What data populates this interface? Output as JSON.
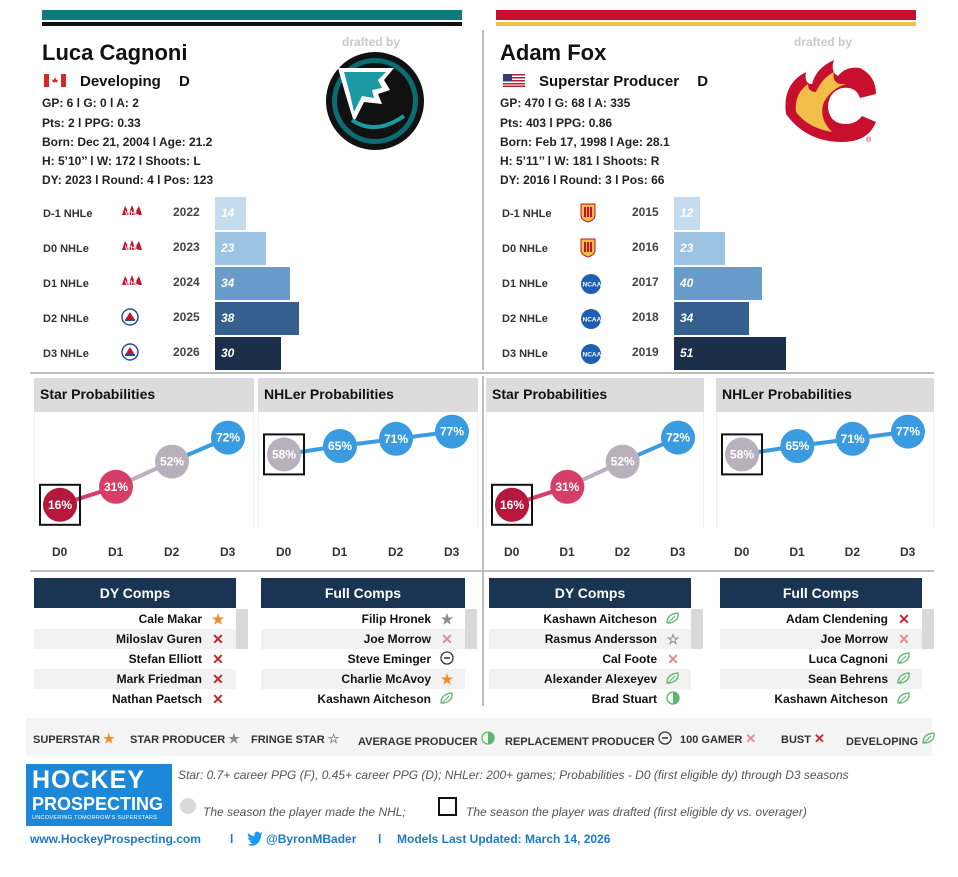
{
  "left": {
    "name": "Luca Cagnoni",
    "status": "Developing",
    "position": "D",
    "line1": "GP: 6 l G: 0 l A: 2",
    "line2": "Pts: 2 l PPG: 0.33",
    "line3": "Born: Dec 21, 2004 l Age: 21.2",
    "line4": "H: 5’10’’ l W: 172 l Shoots: L",
    "line5": "DY: 2023 l Round: 4 l Pos: 123",
    "drafted_by": "drafted by",
    "team_colors": [
      "#006272",
      "#111111"
    ],
    "seasons": [
      {
        "label": "D-1 NHLe",
        "year": "2022",
        "value": 14,
        "league_icon": "whl-logo"
      },
      {
        "label": "D0 NHLe",
        "year": "2023",
        "value": 23,
        "league_icon": "whl-logo"
      },
      {
        "label": "D1 NHLe",
        "year": "2024",
        "value": 34,
        "league_icon": "whl-logo"
      },
      {
        "label": "D2 NHLe",
        "year": "2025",
        "value": 38,
        "league_icon": "ahl-logo"
      },
      {
        "label": "D3 NHLe",
        "year": "2026",
        "value": 30,
        "league_icon": "ahl-logo"
      }
    ],
    "dy_comps": [
      {
        "name": "Cale Makar",
        "icon": "superstar"
      },
      {
        "name": "Miloslav Guren",
        "icon": "bust"
      },
      {
        "name": "Stefan Elliott",
        "icon": "bust"
      },
      {
        "name": "Mark Friedman",
        "icon": "bust"
      },
      {
        "name": "Nathan Paetsch",
        "icon": "bust"
      }
    ],
    "full_comps": [
      {
        "name": "Filip Hronek",
        "icon": "star-producer"
      },
      {
        "name": "Joe Morrow",
        "icon": "100-gamer"
      },
      {
        "name": "Steve Eminger",
        "icon": "replacement"
      },
      {
        "name": "Charlie McAvoy",
        "icon": "superstar"
      },
      {
        "name": "Kashawn Aitcheson",
        "icon": "developing"
      }
    ]
  },
  "right": {
    "name": "Adam Fox",
    "status": "Superstar Producer",
    "position": "D",
    "line1": "GP: 470 l G: 68 l A: 335",
    "line2": "Pts: 403 l PPG: 0.86",
    "line3": "Born: Feb 17, 1998 l Age: 28.1",
    "line4": "H: 5’11’’ l W: 181 l Shoots: R",
    "line5": "DY: 2016 l Round: 3 l Pos: 66",
    "drafted_by": "drafted by",
    "team_colors": [
      "#c8102e",
      "#f1be48"
    ],
    "seasons": [
      {
        "label": "D-1 NHLe",
        "year": "2015",
        "value": 12,
        "league_icon": "ushl-logo"
      },
      {
        "label": "D0 NHLe",
        "year": "2016",
        "value": 23,
        "league_icon": "ushl-logo"
      },
      {
        "label": "D1 NHLe",
        "year": "2017",
        "value": 40,
        "league_icon": "ncaa-logo"
      },
      {
        "label": "D2 NHLe",
        "year": "2018",
        "value": 34,
        "league_icon": "ncaa-logo"
      },
      {
        "label": "D3 NHLe",
        "year": "2019",
        "value": 51,
        "league_icon": "ncaa-logo"
      }
    ],
    "dy_comps": [
      {
        "name": "Kashawn Aitcheson",
        "icon": "developing"
      },
      {
        "name": "Rasmus Andersson",
        "icon": "fringe-star"
      },
      {
        "name": "Cal Foote",
        "icon": "100-gamer"
      },
      {
        "name": "Alexander Alexeyev",
        "icon": "developing"
      },
      {
        "name": "Brad Stuart",
        "icon": "average-producer"
      }
    ],
    "full_comps": [
      {
        "name": "Adam Clendening",
        "icon": "bust"
      },
      {
        "name": "Joe Morrow",
        "icon": "100-gamer"
      },
      {
        "name": "Luca Cagnoni",
        "icon": "developing"
      },
      {
        "name": "Sean Behrens",
        "icon": "developing"
      },
      {
        "name": "Kashawn Aitcheson",
        "icon": "developing"
      }
    ]
  },
  "panels": {
    "star_title": "Star Probabilities",
    "nhler_title": "NHLer Probabilities",
    "x_labels": [
      "D0",
      "D1",
      "D2",
      "D3"
    ],
    "star_values": [
      "16%",
      "31%",
      "52%",
      "72%"
    ],
    "nhler_values": [
      "58%",
      "65%",
      "71%",
      "77%"
    ],
    "dy_comps_title": "DY Comps",
    "full_comps_title": "Full Comps"
  },
  "legend": [
    {
      "label": "SUPERSTAR",
      "icon": "superstar"
    },
    {
      "label": "STAR PRODUCER",
      "icon": "star-producer"
    },
    {
      "label": "FRINGE STAR",
      "icon": "fringe-star"
    },
    {
      "label": "AVERAGE PRODUCER",
      "icon": "average-producer"
    },
    {
      "label": "REPLACEMENT PRODUCER",
      "icon": "replacement"
    },
    {
      "label": "100 GAMER",
      "icon": "100-gamer"
    },
    {
      "label": "BUST",
      "icon": "bust"
    },
    {
      "label": "DEVELOPING",
      "icon": "developing"
    }
  ],
  "footer": {
    "logo_line1": "HOCKEY",
    "logo_line2": "PROSPECTING",
    "logo_tagline": "UNCOVERING TOMORROW'S SUPERSTARS",
    "note1": "Star: 0.7+ career PPG (F), 0.45+ career PPG (D); NHLer: 200+ games; Probabilities - D0 (first eligible dy) through D3 seasons",
    "note2": "The season the player made the NHL;",
    "note3": "The season the player was drafted (first eligible dy vs. overager)",
    "website": "www.HockeyProspecting.com",
    "sep1": "l",
    "twitter": "@ByronMBader",
    "sep2": "l",
    "updated": "Models Last Updated: March 14, 2026"
  },
  "colors": {
    "navy": "#1a3553",
    "bar_shades": [
      "#c4dcee",
      "#9cc3e2",
      "#6a9ccb",
      "#345f8f",
      "#1b2f4b"
    ],
    "star_dots": [
      "#b5173d",
      "#d63e68",
      "#b9b0bd",
      "#3a9be0"
    ],
    "nhler_dots": [
      "#b9b0bd",
      "#3a9be0",
      "#3a9be0",
      "#3a9be0"
    ]
  }
}
